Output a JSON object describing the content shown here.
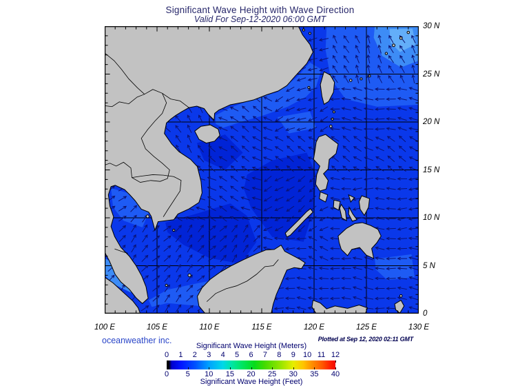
{
  "title": "Significant Wave Height with Wave Direction",
  "subtitle": "Valid For Sep-12-2020 06:00 GMT",
  "credit": "oceanweather inc.",
  "plotted_at": "Plotted at Sep 12, 2020 02:11 GMT",
  "axes": {
    "lat_ticks": [
      "30 N",
      "25 N",
      "20 N",
      "15 N",
      "10 N",
      "5 N",
      "0"
    ],
    "lon_ticks": [
      "100 E",
      "105 E",
      "110 E",
      "115 E",
      "120 E",
      "125 E",
      "130 E"
    ]
  },
  "legend": {
    "meters_title": "Significant Wave Height (Meters)",
    "feet_title": "Significant Wave Height (Feet)",
    "meters_ticks": [
      "0",
      "1",
      "2",
      "3",
      "4",
      "5",
      "6",
      "7",
      "8",
      "9",
      "10",
      "11",
      "12"
    ],
    "feet_ticks": [
      "0",
      "5",
      "10",
      "15",
      "20",
      "25",
      "30",
      "35",
      "40"
    ],
    "gradient_stops": "#000000 0%, #000000 1.2%, #0000cf 3%, #0014ff 8.3%, #0050ff 16.7%, #00a2ff 25%, #00d8e8 33.3%, #00e6a0 39%, #00e55e 45%, #07dc1c 52%, #43db00 58%, #8ee400 66.7%, #e6ee00 75%, #ffc400 81%, #ff9000 86%, #ff5a00 92%, #ff1e00 97%, #f00c00 100%"
  },
  "colors": {
    "ocean_base": "#0a38ea",
    "ocean_dark": "#0124d6",
    "ocean_bright": "#1e5bf4",
    "ocean_light": "#3d8cf6",
    "ocean_lightest": "#63aef9",
    "land": "#c2c2c2",
    "coast": "#000000",
    "grid": "#000000",
    "arrow": "#0b1272",
    "title_text": "#26266a",
    "legend_text": "#00006e",
    "axis_text": "#000000",
    "credit_text": "#2945c8",
    "plotted_text": "#000050"
  }
}
